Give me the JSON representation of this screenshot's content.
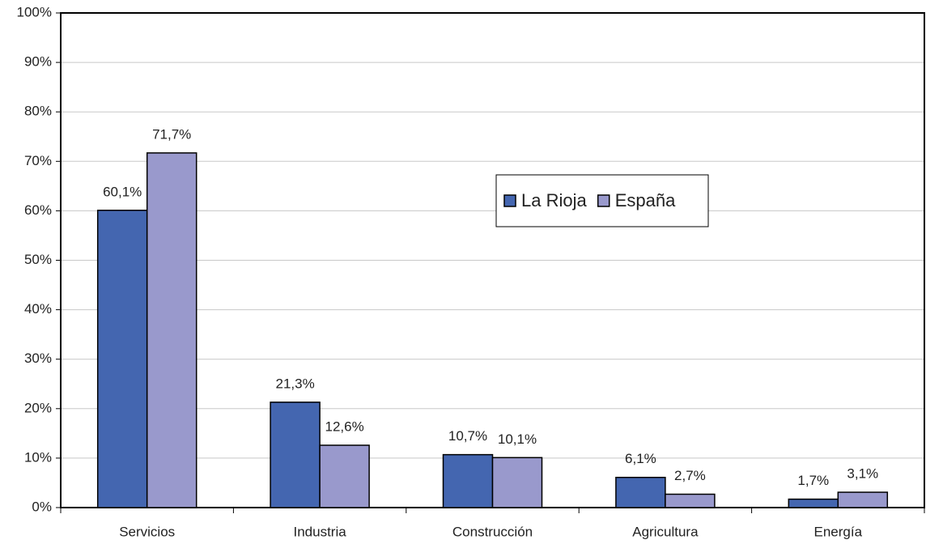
{
  "chart_data": {
    "type": "bar",
    "categories": [
      "Servicios",
      "Industria",
      "Construcción",
      "Agricultura",
      "Energía"
    ],
    "series": [
      {
        "name": "La Rioja",
        "color": "#4466b0",
        "values": [
          60.1,
          21.3,
          10.7,
          6.1,
          1.7
        ],
        "value_labels": [
          "60,1%",
          "21,3%",
          "10,7%",
          "6,1%",
          "1,7%"
        ]
      },
      {
        "name": "España",
        "color": "#9999cc",
        "values": [
          71.7,
          12.6,
          10.1,
          2.7,
          3.1
        ],
        "value_labels": [
          "71,7%",
          "12,6%",
          "10,1%",
          "2,7%",
          "3,1%"
        ]
      }
    ],
    "ylim": [
      0,
      100
    ],
    "yticks": [
      {
        "value": 0,
        "label": "0%"
      },
      {
        "value": 10,
        "label": "10%"
      },
      {
        "value": 20,
        "label": "20%"
      },
      {
        "value": 30,
        "label": "30%"
      },
      {
        "value": 40,
        "label": "40%"
      },
      {
        "value": 50,
        "label": "50%"
      },
      {
        "value": 60,
        "label": "60%"
      },
      {
        "value": 70,
        "label": "70%"
      },
      {
        "value": 80,
        "label": "80%"
      },
      {
        "value": 90,
        "label": "90%"
      },
      {
        "value": 100,
        "label": "100%"
      }
    ],
    "grid": true
  }
}
